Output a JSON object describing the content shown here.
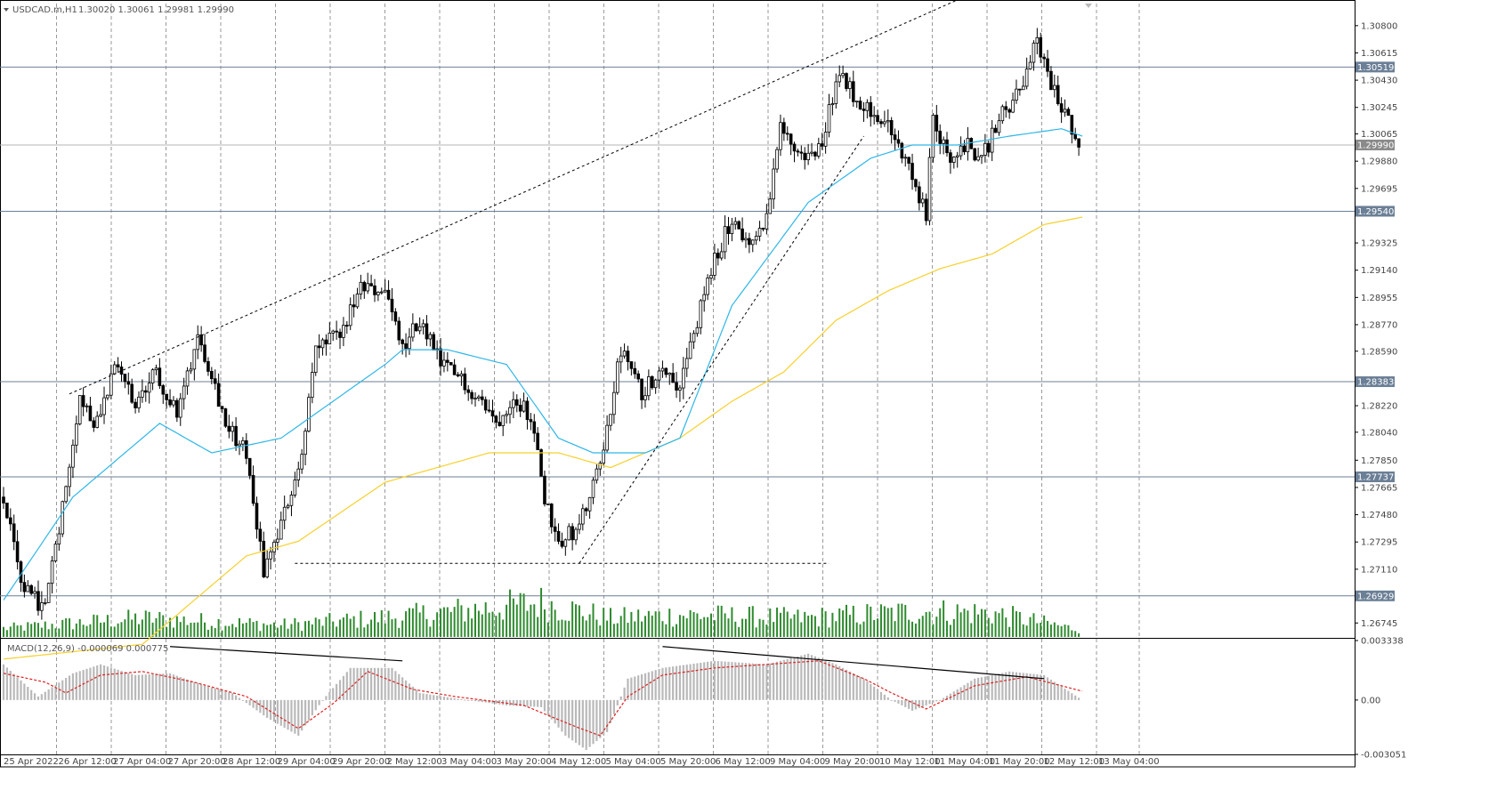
{
  "header": {
    "symbol": "USDCAD.m,H1",
    "ohlc": "1.30020 1.30061 1.29981 1.29990"
  },
  "colors": {
    "background": "#ffffff",
    "grid": "#9a9a9a",
    "candle": "#000000",
    "ma_fast": "#2eb6e8",
    "ma_slow": "#f7d02c",
    "volume": "#2e8b2e",
    "level_line": "#6b7f96",
    "price_line": "#b5b5b5",
    "macd_hist": "#b9b9b9",
    "macd_signal": "#e02020",
    "tag_bg": "#6b7f96",
    "price_tag_bg": "#8a8a8a"
  },
  "chart_data": [
    {
      "type": "candlestick",
      "title": "USDCAD.m,H1",
      "ylim": [
        1.2665,
        1.3095
      ],
      "yticks": [
        "1.30800",
        "1.30615",
        "1.30430",
        "1.30245",
        "1.30065",
        "1.29880",
        "1.29695",
        "1.29325",
        "1.29140",
        "1.28955",
        "1.28770",
        "1.28590",
        "1.28220",
        "1.28040",
        "1.27850",
        "1.27665",
        "1.27480",
        "1.27295",
        "1.27110",
        "1.26745"
      ],
      "xticks": [
        "25 Apr 2022",
        "26 Apr 12:00",
        "27 Apr 04:00",
        "27 Apr 20:00",
        "28 Apr 12:00",
        "29 Apr 04:00",
        "29 Apr 20:00",
        "2 May 12:00",
        "3 May 04:00",
        "3 May 20:00",
        "4 May 12:00",
        "5 May 04:00",
        "5 May 20:00",
        "6 May 12:00",
        "9 May 04:00",
        "9 May 20:00",
        "10 May 12:00",
        "11 May 04:00",
        "11 May 20:00",
        "12 May 12:00",
        "13 May 04:00"
      ],
      "close_path": [
        [
          0,
          1.276
        ],
        [
          5,
          1.27
        ],
        [
          9,
          1.269
        ],
        [
          12,
          1.2685
        ],
        [
          16,
          1.274
        ],
        [
          22,
          1.283
        ],
        [
          26,
          1.281
        ],
        [
          33,
          1.285
        ],
        [
          38,
          1.282
        ],
        [
          44,
          1.2845
        ],
        [
          50,
          1.2815
        ],
        [
          56,
          1.287
        ],
        [
          60,
          1.2845
        ],
        [
          64,
          1.281
        ],
        [
          70,
          1.279
        ],
        [
          75,
          1.271
        ],
        [
          80,
          1.274
        ],
        [
          86,
          1.279
        ],
        [
          90,
          1.286
        ],
        [
          97,
          1.287
        ],
        [
          103,
          1.29
        ],
        [
          110,
          1.29
        ],
        [
          115,
          1.286
        ],
        [
          120,
          1.288
        ],
        [
          126,
          1.285
        ],
        [
          132,
          1.284
        ],
        [
          138,
          1.2825
        ],
        [
          142,
          1.281
        ],
        [
          147,
          1.283
        ],
        [
          152,
          1.2815
        ],
        [
          156,
          1.276
        ],
        [
          160,
          1.273
        ],
        [
          166,
          1.274
        ],
        [
          172,
          1.278
        ],
        [
          178,
          1.286
        ],
        [
          184,
          1.283
        ],
        [
          190,
          1.285
        ],
        [
          195,
          1.2835
        ],
        [
          200,
          1.288
        ],
        [
          205,
          1.292
        ],
        [
          210,
          1.295
        ],
        [
          215,
          1.293
        ],
        [
          219,
          1.294
        ],
        [
          224,
          1.301
        ],
        [
          230,
          1.299
        ],
        [
          235,
          1.2995
        ],
        [
          241,
          1.305
        ],
        [
          246,
          1.303
        ],
        [
          252,
          1.302
        ],
        [
          258,
          1.3
        ],
        [
          263,
          1.297
        ],
        [
          266,
          1.295
        ],
        [
          268,
          1.302
        ],
        [
          272,
          1.299
        ],
        [
          277,
          1.3
        ],
        [
          282,
          1.299
        ],
        [
          288,
          1.302
        ],
        [
          293,
          1.3035
        ],
        [
          298,
          1.307
        ],
        [
          302,
          1.304
        ],
        [
          306,
          1.302
        ],
        [
          311,
          1.2999
        ]
      ],
      "fast_ma_path": [
        [
          0,
          1.269
        ],
        [
          20,
          1.276
        ],
        [
          45,
          1.281
        ],
        [
          60,
          1.279
        ],
        [
          80,
          1.28
        ],
        [
          110,
          1.285
        ],
        [
          115,
          1.286
        ],
        [
          128,
          1.286
        ],
        [
          145,
          1.285
        ],
        [
          160,
          1.28
        ],
        [
          170,
          1.279
        ],
        [
          185,
          1.279
        ],
        [
          195,
          1.28
        ],
        [
          210,
          1.289
        ],
        [
          232,
          1.296
        ],
        [
          250,
          1.299
        ],
        [
          262,
          1.2999
        ],
        [
          275,
          1.2999
        ],
        [
          290,
          1.3005
        ],
        [
          305,
          1.301
        ],
        [
          311,
          1.3005
        ]
      ],
      "slow_ma_path": [
        [
          0,
          1.265
        ],
        [
          40,
          1.266
        ],
        [
          70,
          1.272
        ],
        [
          85,
          1.273
        ],
        [
          110,
          1.277
        ],
        [
          140,
          1.279
        ],
        [
          160,
          1.279
        ],
        [
          175,
          1.278
        ],
        [
          195,
          1.28
        ],
        [
          210,
          1.2825
        ],
        [
          225,
          1.2845
        ],
        [
          240,
          1.288
        ],
        [
          255,
          1.29
        ],
        [
          270,
          1.2915
        ],
        [
          285,
          1.2925
        ],
        [
          300,
          1.2945
        ],
        [
          311,
          1.295
        ]
      ],
      "horizontal_levels": [
        1.30519,
        1.2954,
        1.28383,
        1.27737,
        1.26929
      ],
      "level_labels": [
        "1.30519",
        "1.29540",
        "1.28383",
        "1.27737",
        "1.26929"
      ],
      "current_price": 1.2999,
      "current_price_label": "1.29990",
      "trendlines": [
        {
          "from": [
            19,
            1.283
          ],
          "to": [
            287,
            1.311
          ]
        },
        {
          "from": [
            84,
            1.2715
          ],
          "to": [
            238,
            1.2715
          ]
        },
        {
          "from": [
            166,
            1.2715
          ],
          "to": [
            248,
            1.3005
          ]
        }
      ],
      "volume_path": [
        [
          0,
          0.25
        ],
        [
          40,
          0.55
        ],
        [
          80,
          0.35
        ],
        [
          115,
          0.6
        ],
        [
          155,
          1.0
        ],
        [
          175,
          0.55
        ],
        [
          195,
          0.65
        ],
        [
          230,
          0.55
        ],
        [
          265,
          0.75
        ],
        [
          285,
          0.7
        ],
        [
          311,
          0.2
        ]
      ]
    },
    {
      "type": "bar",
      "title": "MACD(12,26,9) -0.000069 0.000775",
      "ylim": [
        -0.003051,
        0.003338
      ],
      "yticks": [
        "0.003338",
        "0.00",
        "-0.003051"
      ],
      "histogram_path": [
        [
          0,
          0.002
        ],
        [
          10,
          0.0002
        ],
        [
          20,
          0.0015
        ],
        [
          28,
          0.002
        ],
        [
          38,
          0.0014
        ],
        [
          48,
          0.0015
        ],
        [
          58,
          0.0008
        ],
        [
          66,
          0.0004
        ],
        [
          76,
          -0.001
        ],
        [
          85,
          -0.002
        ],
        [
          92,
          0.0
        ],
        [
          100,
          0.0018
        ],
        [
          112,
          0.0018
        ],
        [
          120,
          0.0004
        ],
        [
          130,
          0.0001
        ],
        [
          145,
          -0.0003
        ],
        [
          155,
          -0.0004
        ],
        [
          162,
          -0.002
        ],
        [
          168,
          -0.0028
        ],
        [
          174,
          -0.0018
        ],
        [
          180,
          0.0012
        ],
        [
          190,
          0.0018
        ],
        [
          205,
          0.0022
        ],
        [
          220,
          0.002
        ],
        [
          232,
          0.0026
        ],
        [
          240,
          0.002
        ],
        [
          248,
          0.0012
        ],
        [
          256,
          0.0
        ],
        [
          262,
          -0.0006
        ],
        [
          270,
          0.0
        ],
        [
          280,
          0.0012
        ],
        [
          290,
          0.0016
        ],
        [
          300,
          0.0014
        ],
        [
          311,
          0.0
        ]
      ],
      "signal_path": [
        [
          0,
          0.0015
        ],
        [
          12,
          0.001
        ],
        [
          18,
          0.0004
        ],
        [
          28,
          0.0014
        ],
        [
          40,
          0.0016
        ],
        [
          55,
          0.001
        ],
        [
          70,
          0.0002
        ],
        [
          85,
          -0.0016
        ],
        [
          95,
          -0.0002
        ],
        [
          105,
          0.0016
        ],
        [
          118,
          0.0006
        ],
        [
          130,
          0.0002
        ],
        [
          150,
          -0.0003
        ],
        [
          165,
          -0.0015
        ],
        [
          172,
          -0.002
        ],
        [
          180,
          0.0002
        ],
        [
          190,
          0.0014
        ],
        [
          205,
          0.0018
        ],
        [
          220,
          0.002
        ],
        [
          235,
          0.0022
        ],
        [
          248,
          0.0012
        ],
        [
          256,
          0.0004
        ],
        [
          266,
          -0.0005
        ],
        [
          280,
          0.0008
        ],
        [
          295,
          0.0013
        ],
        [
          311,
          0.0005
        ]
      ],
      "trendlines": [
        {
          "from": [
            48,
            0.003
          ],
          "to": [
            115,
            0.0022
          ]
        },
        {
          "from": [
            190,
            0.003
          ],
          "to": [
            300,
            0.0012
          ]
        }
      ]
    }
  ]
}
